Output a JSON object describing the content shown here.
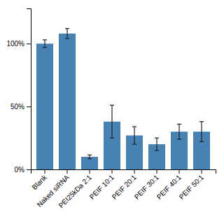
{
  "chart_data": {
    "type": "bar",
    "categories": [
      "Blank",
      "Naked siRNA",
      "PEI25kDa 2:1",
      "PEIF 10:1",
      "PEIF 20:1",
      "PEIF 30:1",
      "PEIF 40:1",
      "PEIF 50:1"
    ],
    "values": [
      100,
      108,
      10,
      38,
      27,
      20,
      30,
      30
    ],
    "errors": [
      3,
      4,
      1.5,
      13,
      7,
      5,
      6,
      8
    ],
    "ylim": [
      0,
      128
    ],
    "yticks": [
      {
        "value": 0,
        "label": "0%"
      },
      {
        "value": 50,
        "label": "50%"
      },
      {
        "value": 100,
        "label": "100%"
      }
    ]
  }
}
